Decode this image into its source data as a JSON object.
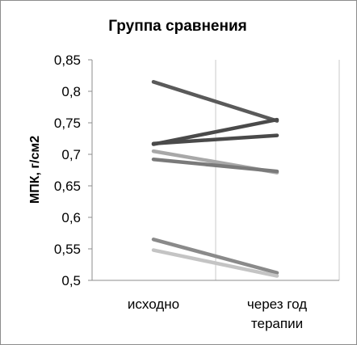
{
  "chart_data": {
    "type": "line",
    "title": "Группа сравнения",
    "ylabel": "МПК, г/см2",
    "xlabel": "",
    "categories": [
      [
        "исходно"
      ],
      [
        "через год",
        "терапии"
      ]
    ],
    "ylim": [
      0.5,
      0.85
    ],
    "yticks": [
      0.5,
      0.55,
      0.6,
      0.65,
      0.7,
      0.75,
      0.8,
      0.85
    ],
    "ytick_labels": [
      "0,5",
      "0,55",
      "0,6",
      "0,65",
      "0,7",
      "0,75",
      "0,8",
      "0,85"
    ],
    "grid": "vertical",
    "series": [
      {
        "values": [
          0.815,
          0.753
        ],
        "color": "#5a5a5a"
      },
      {
        "values": [
          0.716,
          0.755
        ],
        "color": "#4a4a4a"
      },
      {
        "values": [
          0.717,
          0.73
        ],
        "color": "#4a4a4a"
      },
      {
        "values": [
          0.705,
          0.671
        ],
        "color": "#a8a8a8"
      },
      {
        "values": [
          0.692,
          0.673
        ],
        "color": "#7a7a7a"
      },
      {
        "values": [
          0.565,
          0.512
        ],
        "color": "#8a8a8a"
      },
      {
        "values": [
          0.548,
          0.507
        ],
        "color": "#c4c4c4"
      }
    ]
  }
}
